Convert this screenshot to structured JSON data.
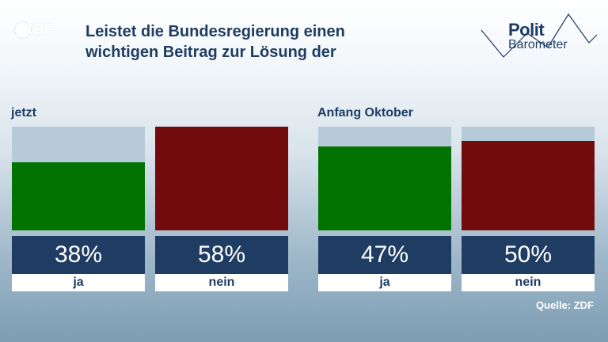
{
  "header": {
    "logo_text": "ZDF",
    "title_line1": "Leistet die Bundesregierung einen",
    "title_line2": "wichtigen Beitrag zur Lösung der",
    "brand_top": "Polit",
    "brand_bottom": "Barometer"
  },
  "source": "Quelle: ZDF",
  "colors": {
    "ja": "#007300",
    "nein": "#720c0c",
    "track": "#b7cad8",
    "box": "#1f3d63"
  },
  "chart_data": [
    {
      "type": "bar",
      "title": "jetzt",
      "categories": [
        "ja",
        "nein"
      ],
      "values": [
        38,
        58
      ],
      "value_labels": [
        "38%",
        "58%"
      ],
      "ylim": [
        0,
        58
      ]
    },
    {
      "type": "bar",
      "title": "Anfang Oktober",
      "categories": [
        "ja",
        "nein"
      ],
      "values": [
        47,
        50
      ],
      "value_labels": [
        "47%",
        "50%"
      ],
      "ylim": [
        0,
        58
      ]
    }
  ]
}
